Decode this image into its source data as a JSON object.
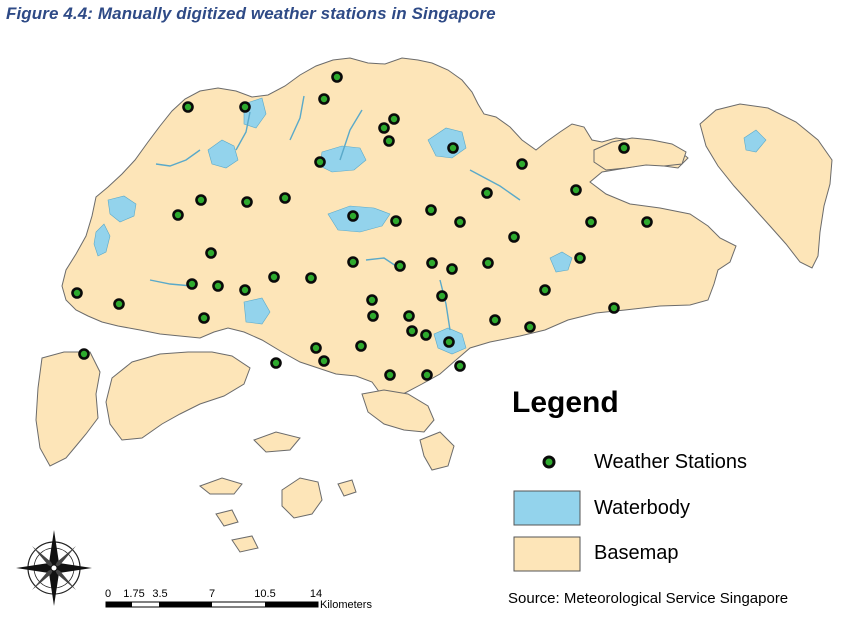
{
  "figure": {
    "title": "Figure 4.4: Manually digitized weather stations in Singapore"
  },
  "colors": {
    "basemap": "#FDE5B8",
    "basemap_stroke": "#6b6b6b",
    "waterbody": "#93D3EC",
    "station_fill": "#2EAA2E",
    "station_stroke": "#0a0a0a",
    "title": "#2E4A86"
  },
  "legend": {
    "title": "Legend",
    "items": [
      {
        "symbol": "station-dot",
        "label": "Weather Stations"
      },
      {
        "symbol": "waterbody-swatch",
        "label": "Waterbody"
      },
      {
        "symbol": "basemap-swatch",
        "label": "Basemap"
      }
    ]
  },
  "scale_bar": {
    "ticks": [
      "0",
      "1.75",
      "3.5",
      "7",
      "10.5",
      "14"
    ],
    "units": "Kilometers"
  },
  "north_arrow": {
    "icon": "compass-rose-icon"
  },
  "source": "Source: Meteorological Service Singapore",
  "station_count": 58
}
